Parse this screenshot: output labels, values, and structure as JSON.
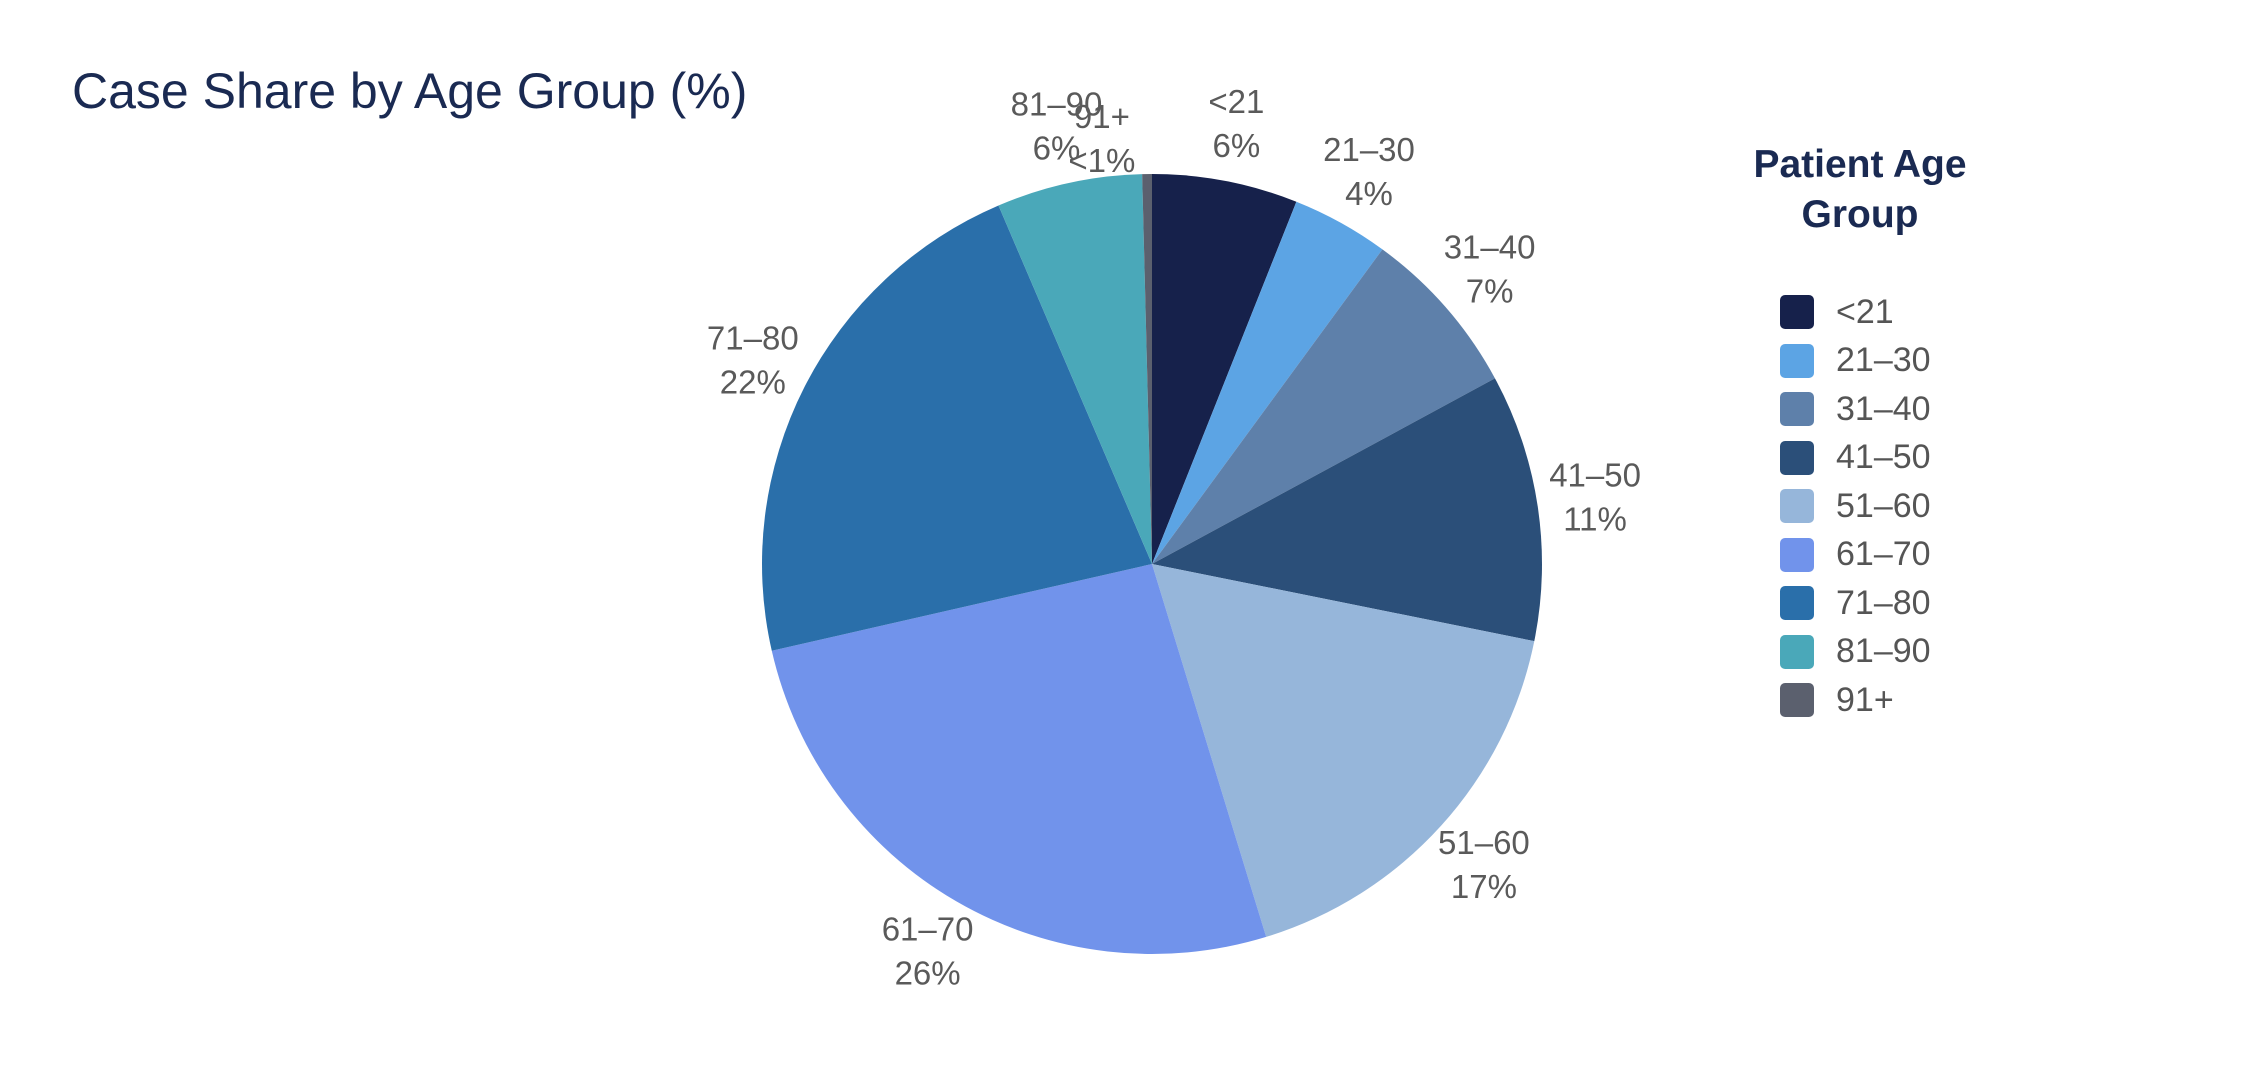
{
  "chart_data": {
    "type": "pie",
    "title": "Case Share by Age Group (%)",
    "legend_title": "Patient Age Group",
    "legend_position": "right",
    "slices": [
      {
        "label": "<21",
        "value": 6,
        "display": "6%",
        "color": "#16214b"
      },
      {
        "label": "21–30",
        "value": 4,
        "display": "4%",
        "color": "#5ca4e4"
      },
      {
        "label": "31–40",
        "value": 7,
        "display": "7%",
        "color": "#5e80aa"
      },
      {
        "label": "41–50",
        "value": 11,
        "display": "11%",
        "color": "#2b4f79"
      },
      {
        "label": "51–60",
        "value": 17,
        "display": "17%",
        "color": "#96b6da"
      },
      {
        "label": "61–70",
        "value": 26,
        "display": "26%",
        "color": "#7193eb"
      },
      {
        "label": "71–80",
        "value": 22,
        "display": "22%",
        "color": "#2a6faa"
      },
      {
        "label": "81–90",
        "value": 6,
        "display": "6%",
        "color": "#4aa8b9"
      },
      {
        "label": "91+",
        "value": 0.4,
        "display": "<1%",
        "color": "#5b606e"
      }
    ]
  }
}
